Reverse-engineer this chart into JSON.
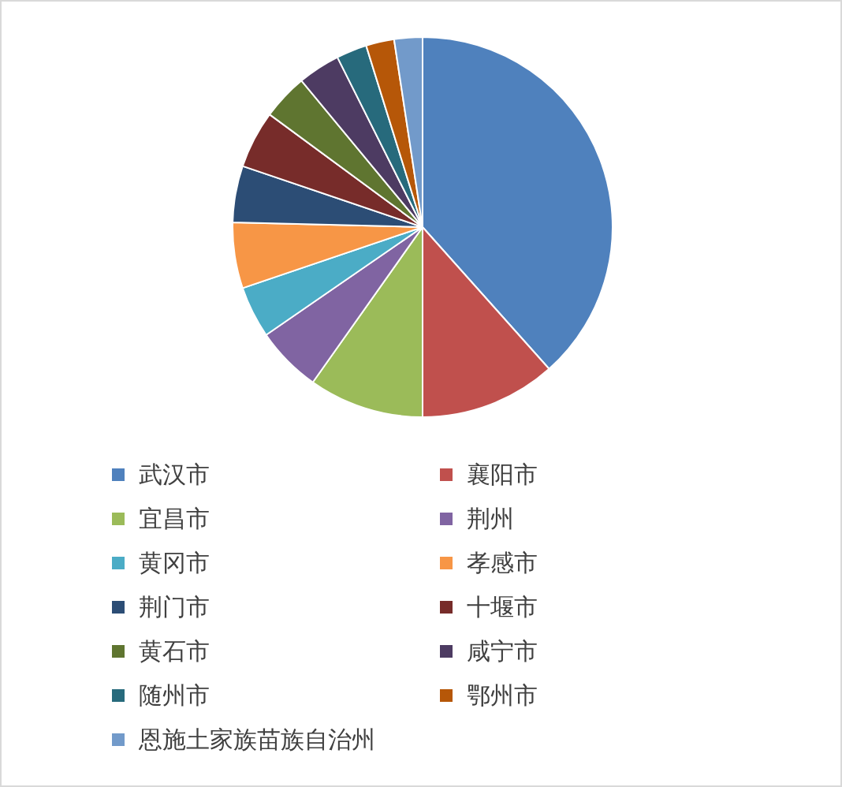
{
  "chart_data": {
    "type": "pie",
    "legend": "bottom",
    "categories": [
      "武汉市",
      "襄阳市",
      "宜昌市",
      "荆州",
      "黄冈市",
      "孝感市",
      "荆门市",
      "十堰市",
      "黄石市",
      "咸宁市",
      "随州市",
      "鄂州市",
      "恩施土家族苗族自治州"
    ],
    "values": [
      38.4,
      11.6,
      9.8,
      5.6,
      4.4,
      5.6,
      4.8,
      4.9,
      3.9,
      3.6,
      2.6,
      2.4,
      2.4
    ],
    "colors": [
      "#4f81bd",
      "#c0504d",
      "#9bbb59",
      "#8064a2",
      "#4bacc6",
      "#f79646",
      "#2c4d75",
      "#772c2a",
      "#5f7530",
      "#4d3b62",
      "#276a7c",
      "#b65708",
      "#729aca"
    ]
  }
}
